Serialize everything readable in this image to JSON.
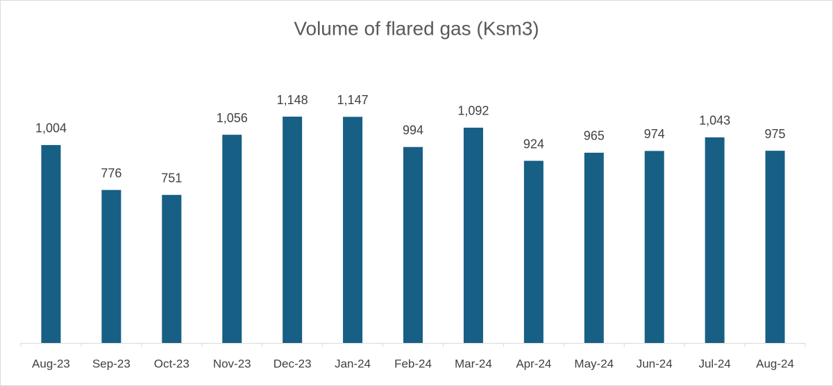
{
  "chart_data": {
    "type": "bar",
    "title": "Volume of flared gas (Ksm3)",
    "categories": [
      "Aug-23",
      "Sep-23",
      "Oct-23",
      "Nov-23",
      "Dec-23",
      "Jan-24",
      "Feb-24",
      "Mar-24",
      "Apr-24",
      "May-24",
      "Jun-24",
      "Jul-24",
      "Aug-24"
    ],
    "values": [
      1004,
      776,
      751,
      1056,
      1148,
      1147,
      994,
      1092,
      924,
      965,
      974,
      1043,
      975
    ],
    "value_labels": [
      "1,004",
      "776",
      "751",
      "1,056",
      "1,148",
      "1,147",
      "994",
      "1,092",
      "924",
      "965",
      "974",
      "1,043",
      "975"
    ],
    "color": "#175f84"
  }
}
